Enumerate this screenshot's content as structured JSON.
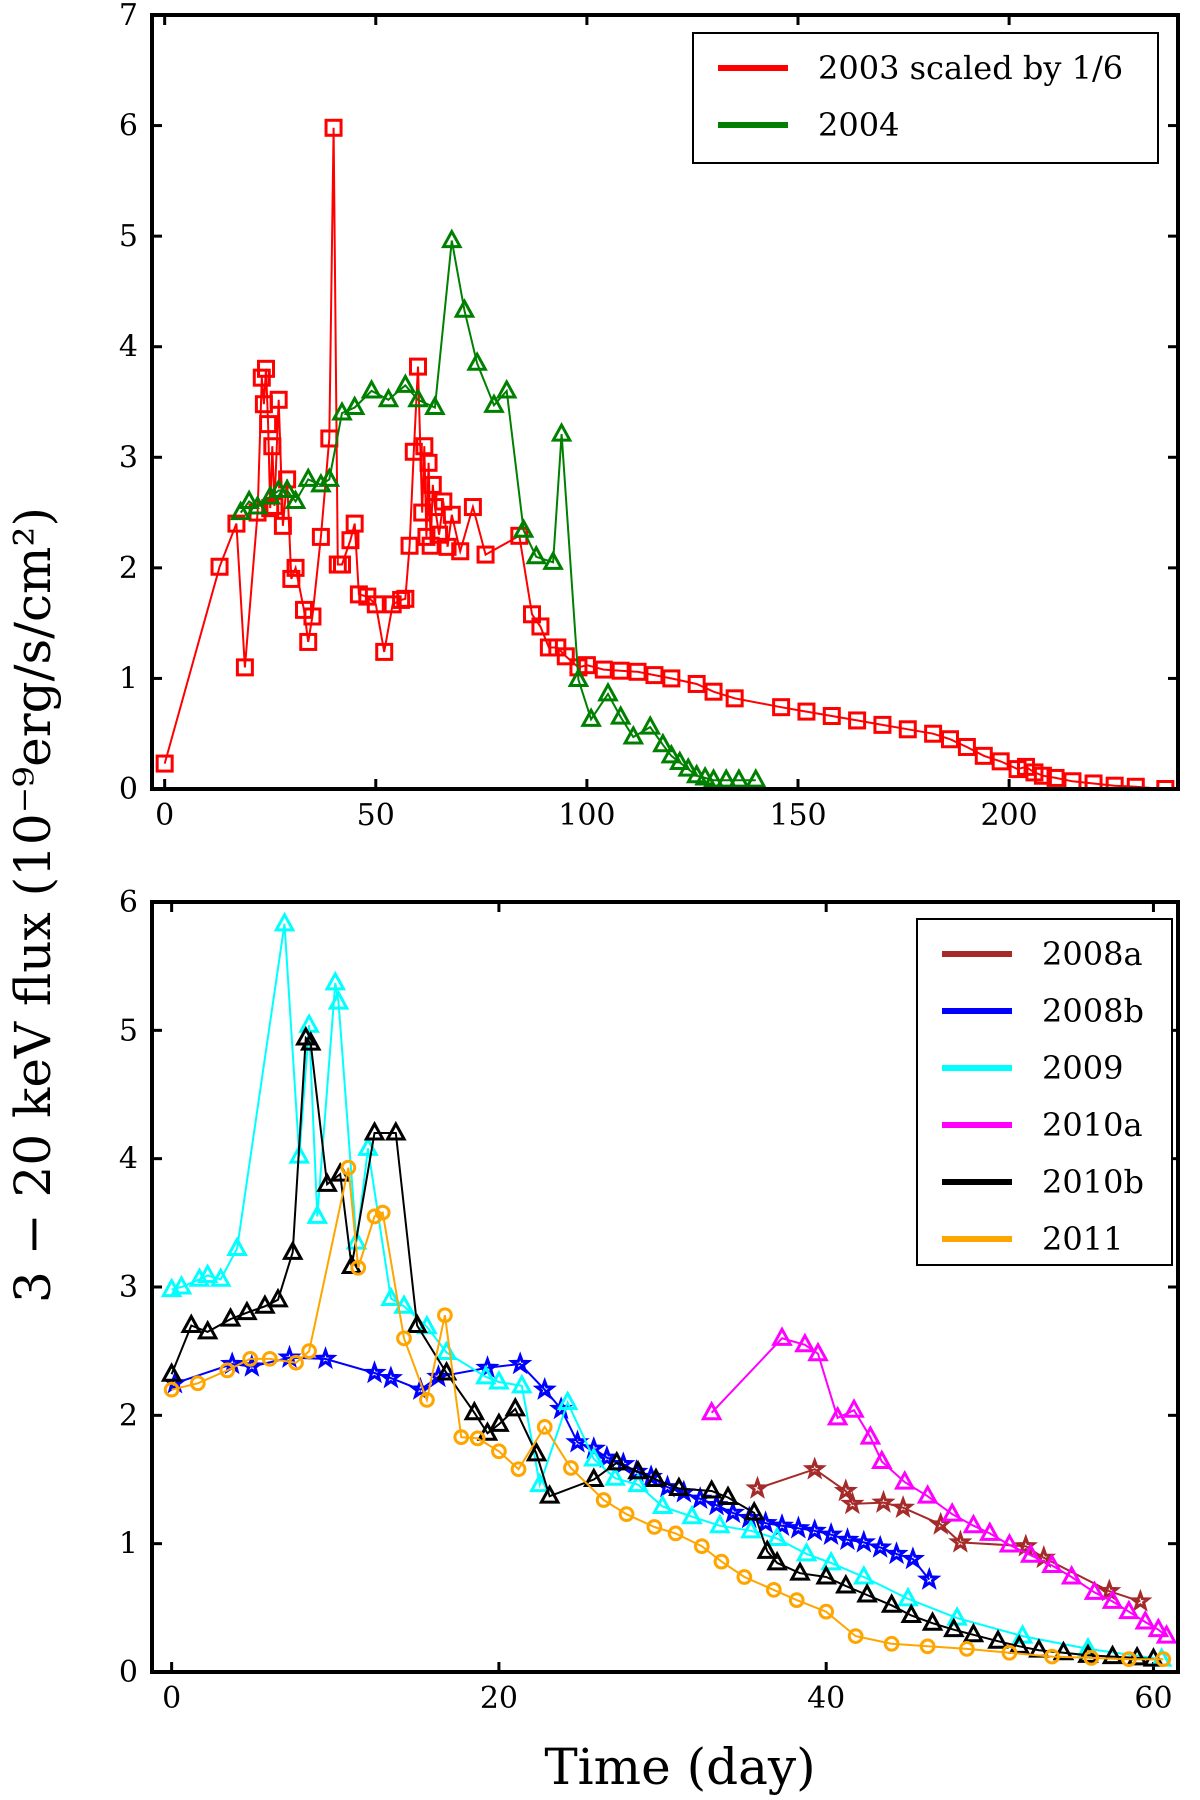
{
  "ylabel": "3 − 20 keV flux (10⁻⁹erg/s/cm²)",
  "xlabel": "Time (day)",
  "chart_data": [
    {
      "type": "line",
      "xlim": [
        -3,
        240
      ],
      "ylim": [
        0,
        7
      ],
      "xticks": [
        0,
        50,
        100,
        150,
        200
      ],
      "yticks": [
        0,
        1,
        2,
        3,
        4,
        5,
        6,
        7
      ],
      "grid": false,
      "legend_position": "top-right",
      "series": [
        {
          "name": "2003 scaled by 1/6",
          "color": "#ff0000",
          "marker": "square",
          "x": [
            0,
            13,
            17,
            19,
            22,
            23,
            23.5,
            24,
            24.5,
            25,
            25.5,
            26,
            27,
            28,
            29,
            30,
            31,
            33,
            34,
            35,
            37,
            39,
            40,
            41,
            42,
            44,
            45,
            46,
            48,
            50,
            52,
            54,
            56,
            57,
            58,
            59,
            60,
            61,
            61.5,
            62,
            62.5,
            63,
            63.5,
            64,
            65,
            66,
            67,
            68,
            70,
            73,
            76,
            84,
            87,
            89,
            91,
            93,
            95,
            98,
            100,
            104,
            108,
            112,
            116,
            120,
            126,
            130,
            135,
            146,
            152,
            158,
            164,
            170,
            176,
            182,
            186,
            190,
            194,
            198,
            202,
            204,
            206,
            208,
            211,
            215,
            220,
            225,
            230,
            237
          ],
          "y": [
            0.23,
            2.01,
            2.4,
            1.1,
            2.5,
            3.72,
            3.48,
            3.8,
            3.3,
            2.54,
            3.1,
            2.56,
            3.52,
            2.38,
            2.8,
            1.9,
            2.0,
            1.62,
            1.33,
            1.56,
            2.28,
            3.17,
            5.98,
            2.03,
            2.03,
            2.25,
            2.4,
            1.76,
            1.74,
            1.67,
            1.24,
            1.67,
            1.71,
            1.72,
            2.2,
            3.05,
            3.82,
            2.5,
            3.1,
            2.28,
            2.95,
            2.2,
            2.75,
            2.55,
            2.3,
            2.6,
            2.19,
            2.48,
            2.15,
            2.55,
            2.12,
            2.29,
            1.58,
            1.47,
            1.28,
            1.28,
            1.2,
            1.1,
            1.12,
            1.08,
            1.07,
            1.06,
            1.03,
            1.0,
            0.95,
            0.88,
            0.82,
            0.74,
            0.7,
            0.66,
            0.62,
            0.58,
            0.54,
            0.5,
            0.45,
            0.38,
            0.3,
            0.25,
            0.18,
            0.2,
            0.15,
            0.12,
            0.1,
            0.07,
            0.05,
            0.03,
            0.02,
            0.0
          ]
        },
        {
          "name": "2004",
          "color": "#008000",
          "marker": "triangle",
          "x": [
            18,
            20,
            22,
            25,
            27,
            29,
            31,
            34,
            37,
            39,
            42,
            45,
            49,
            53,
            57,
            60,
            64,
            68,
            71,
            74,
            78,
            81,
            85,
            88,
            92,
            94,
            98,
            101,
            105,
            108,
            111,
            115,
            118,
            120,
            122,
            124,
            126,
            128,
            130,
            133,
            136,
            140
          ],
          "y": [
            2.5,
            2.6,
            2.55,
            2.64,
            2.7,
            2.7,
            2.6,
            2.8,
            2.75,
            2.8,
            3.4,
            3.45,
            3.6,
            3.52,
            3.65,
            3.52,
            3.45,
            4.96,
            4.33,
            3.85,
            3.47,
            3.6,
            2.34,
            2.1,
            2.05,
            3.21,
            0.99,
            0.63,
            0.86,
            0.65,
            0.47,
            0.56,
            0.4,
            0.3,
            0.24,
            0.18,
            0.12,
            0.1,
            0.08,
            0.08,
            0.08,
            0.08
          ]
        }
      ]
    },
    {
      "type": "line",
      "xlim": [
        -1.2,
        61.5
      ],
      "ylim": [
        0,
        6
      ],
      "xticks": [
        0,
        20,
        40,
        60
      ],
      "yticks": [
        0,
        1,
        2,
        3,
        4,
        5,
        6
      ],
      "grid": false,
      "legend_position": "top-right",
      "series": [
        {
          "name": "2008a",
          "color": "#a52a2a",
          "marker": "star",
          "x": [
            35.8,
            39.3,
            41.2,
            41.6,
            43.5,
            44.7,
            47.0,
            48.2,
            52.2,
            53.3,
            57.3,
            59.2
          ],
          "y": [
            1.43,
            1.58,
            1.41,
            1.31,
            1.32,
            1.28,
            1.15,
            1.01,
            0.98,
            0.89,
            0.63,
            0.55
          ]
        },
        {
          "name": "2008b",
          "color": "#0000ff",
          "marker": "star",
          "x": [
            0.2,
            3.7,
            4.9,
            7.2,
            9.4,
            12.4,
            13.4,
            15.2,
            16.3,
            19.3,
            21.3,
            22.8,
            23.8,
            24.8,
            25.8,
            26.6,
            27.6,
            28.4,
            29.3,
            30.3,
            31.3,
            32.3,
            33.3,
            34.3,
            35.3,
            36.3,
            37.3,
            38.3,
            39.3,
            40.3,
            41.3,
            42.3,
            43.3,
            44.3,
            45.3,
            46.3
          ],
          "y": [
            2.25,
            2.4,
            2.38,
            2.45,
            2.44,
            2.33,
            2.29,
            2.2,
            2.3,
            2.37,
            2.4,
            2.2,
            2.05,
            1.79,
            1.74,
            1.67,
            1.62,
            1.56,
            1.52,
            1.44,
            1.4,
            1.35,
            1.3,
            1.24,
            1.2,
            1.16,
            1.14,
            1.12,
            1.1,
            1.07,
            1.03,
            1.01,
            0.97,
            0.92,
            0.88,
            0.72
          ]
        },
        {
          "name": "2009",
          "color": "#00ffff",
          "marker": "triangle",
          "x": [
            0,
            0.6,
            1.7,
            2.2,
            3.0,
            4.0,
            6.9,
            7.8,
            8.4,
            8.9,
            10.0,
            10.2,
            11.3,
            12.0,
            13.4,
            14.2,
            15.6,
            16.8,
            19.2,
            20.0,
            21.4,
            22.5,
            24.2,
            25.8,
            27.1,
            28.5,
            30.0,
            31.8,
            33.5,
            35.4,
            37.0,
            38.8,
            40.3,
            42.3,
            45.0,
            48.0,
            52.0,
            56.0,
            60.5
          ],
          "y": [
            2.98,
            3.0,
            3.06,
            3.09,
            3.06,
            3.3,
            5.83,
            4.02,
            5.04,
            3.55,
            5.37,
            5.22,
            3.35,
            4.08,
            2.91,
            2.85,
            2.69,
            2.49,
            2.3,
            2.26,
            2.23,
            1.46,
            2.1,
            1.66,
            1.51,
            1.46,
            1.29,
            1.21,
            1.14,
            1.1,
            1.04,
            0.92,
            0.85,
            0.74,
            0.57,
            0.42,
            0.28,
            0.18,
            0.1
          ]
        },
        {
          "name": "2010a",
          "color": "#ff00ff",
          "marker": "triangle",
          "x": [
            33.0,
            37.3,
            38.7,
            39.5,
            40.7,
            41.7,
            42.7,
            43.4,
            44.8,
            46.2,
            47.7,
            49.0,
            50.0,
            51.2,
            52.5,
            53.8,
            55.0,
            56.4,
            57.5,
            58.5,
            59.5,
            60.3,
            60.8
          ],
          "y": [
            2.02,
            2.6,
            2.55,
            2.48,
            1.98,
            2.04,
            1.83,
            1.64,
            1.48,
            1.37,
            1.23,
            1.14,
            1.08,
            0.99,
            0.91,
            0.83,
            0.74,
            0.62,
            0.55,
            0.47,
            0.39,
            0.33,
            0.28
          ]
        },
        {
          "name": "2010b",
          "color": "#000000",
          "marker": "triangle",
          "x": [
            0,
            1.2,
            2.2,
            3.6,
            4.6,
            5.7,
            6.5,
            7.4,
            8.2,
            8.5,
            9.5,
            10.3,
            11.0,
            12.4,
            13.7,
            15.0,
            16.8,
            18.5,
            19.3,
            20.0,
            21.0,
            22.3,
            23.1,
            25.8,
            27.2,
            28.5,
            29.6,
            31.0,
            33.0,
            34.0,
            35.6,
            36.4,
            37.0,
            38.4,
            40.0,
            41.2,
            42.5,
            44.0,
            45.2,
            46.5,
            47.8,
            49.0,
            50.5,
            51.8,
            53.0,
            54.5,
            56.0,
            57.5,
            59.0,
            60.0
          ],
          "y": [
            2.32,
            2.7,
            2.65,
            2.75,
            2.8,
            2.85,
            2.9,
            3.27,
            4.94,
            4.9,
            3.8,
            3.88,
            3.16,
            4.2,
            4.2,
            2.7,
            2.33,
            2.02,
            1.86,
            1.93,
            2.05,
            1.7,
            1.37,
            1.5,
            1.63,
            1.56,
            1.5,
            1.43,
            1.41,
            1.36,
            1.24,
            0.94,
            0.85,
            0.77,
            0.74,
            0.67,
            0.6,
            0.52,
            0.44,
            0.38,
            0.33,
            0.29,
            0.24,
            0.2,
            0.17,
            0.15,
            0.13,
            0.12,
            0.11,
            0.1
          ]
        },
        {
          "name": "2011",
          "color": "#ffa500",
          "marker": "circle",
          "x": [
            0,
            1.6,
            3.4,
            4.8,
            6.0,
            7.6,
            8.4,
            10.8,
            11.4,
            12.4,
            12.9,
            14.2,
            15.6,
            16.7,
            17.7,
            18.7,
            20.0,
            21.2,
            22.8,
            24.4,
            26.4,
            27.8,
            29.5,
            30.8,
            32.4,
            33.6,
            35.0,
            36.8,
            38.2,
            40.0,
            41.8,
            44.0,
            46.2,
            48.6,
            51.2,
            53.8,
            56.2,
            58.5,
            60.6
          ],
          "y": [
            2.2,
            2.25,
            2.35,
            2.44,
            2.44,
            2.41,
            2.5,
            3.93,
            3.15,
            3.55,
            3.58,
            2.6,
            2.12,
            2.78,
            1.83,
            1.82,
            1.72,
            1.58,
            1.91,
            1.59,
            1.34,
            1.23,
            1.13,
            1.08,
            0.98,
            0.86,
            0.74,
            0.64,
            0.56,
            0.47,
            0.28,
            0.22,
            0.2,
            0.18,
            0.15,
            0.12,
            0.11,
            0.1,
            0.1
          ]
        }
      ]
    }
  ]
}
